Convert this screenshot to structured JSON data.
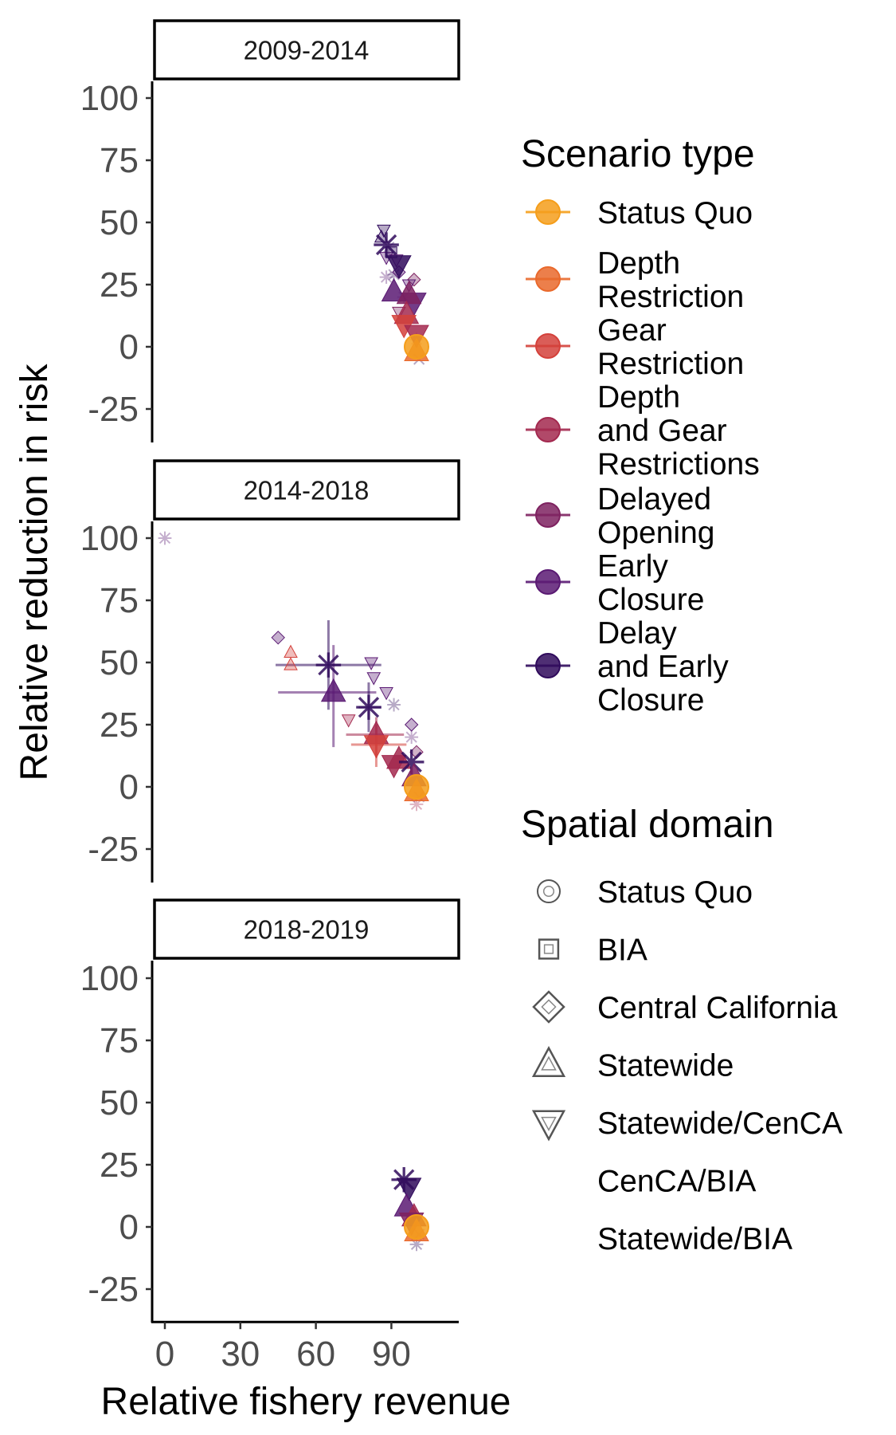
{
  "chart_data": {
    "type": "scatter",
    "xlabel": "Relative fishery revenue",
    "ylabel": "Relative reduction in risk",
    "xlim": [
      -5,
      117
    ],
    "ylim": [
      -35,
      108
    ],
    "xticks": [
      0,
      30,
      60,
      90
    ],
    "yticks": [
      100,
      75,
      50,
      25,
      0,
      -25
    ],
    "facets": [
      "2009-2014",
      "2014-2018",
      "2018-2019"
    ],
    "legend_scenario": {
      "title": "Scenario type",
      "items": [
        {
          "label": [
            "Status Quo"
          ],
          "color": "#f59e1b"
        },
        {
          "label": [
            "Depth",
            "Restriction"
          ],
          "color": "#e9692c"
        },
        {
          "label": [
            "Gear",
            "Restriction"
          ],
          "color": "#d4413b"
        },
        {
          "label": [
            "Depth",
            "and Gear",
            "Restrictions"
          ],
          "color": "#a3294f"
        },
        {
          "label": [
            "Delayed",
            "Opening"
          ],
          "color": "#7e2260"
        },
        {
          "label": [
            "Early",
            "Closure"
          ],
          "color": "#5a1a73"
        },
        {
          "label": [
            "Delay",
            "and Early",
            "Closure"
          ],
          "color": "#300b5c"
        }
      ]
    },
    "legend_spatial": {
      "title": "Spatial domain",
      "items": [
        {
          "label": "Status Quo",
          "shape": "circle"
        },
        {
          "label": "BIA",
          "shape": "square"
        },
        {
          "label": "Central California",
          "shape": "diamond"
        },
        {
          "label": "Statewide",
          "shape": "triangle-up"
        },
        {
          "label": "Statewide/CenCA",
          "shape": "triangle-down"
        },
        {
          "label": "CenCA/BIA",
          "shape": "x"
        },
        {
          "label": "Statewide/BIA",
          "shape": "asterisk"
        }
      ]
    },
    "panels": [
      {
        "facet": "2009-2014",
        "points": [
          {
            "x": 87,
            "y": 47,
            "c": 6,
            "s": "triangle-down",
            "big": false
          },
          {
            "x": 86,
            "y": 44,
            "c": 6,
            "s": "triangle-up",
            "big": false
          },
          {
            "x": 89,
            "y": 40,
            "c": 6,
            "s": "asterisk",
            "big": false
          },
          {
            "x": 88,
            "y": 36,
            "c": 5,
            "s": "triangle-down",
            "big": false
          },
          {
            "x": 90,
            "y": 38,
            "c": 6,
            "s": "square",
            "big": false
          },
          {
            "x": 92,
            "y": 35,
            "c": 5,
            "s": "triangle-down",
            "big": false
          },
          {
            "x": 88,
            "y": 28,
            "c": 5,
            "s": "asterisk",
            "big": false
          },
          {
            "x": 91,
            "y": 29,
            "c": 6,
            "s": "asterisk",
            "big": false
          },
          {
            "x": 93,
            "y": 30,
            "c": 5,
            "s": "diamond",
            "big": false
          },
          {
            "x": 99,
            "y": 27,
            "c": 4,
            "s": "diamond",
            "big": false
          },
          {
            "x": 95,
            "y": 20,
            "c": 5,
            "s": "asterisk",
            "big": false
          },
          {
            "x": 97,
            "y": 25,
            "c": 5,
            "s": "triangle-down",
            "big": false
          },
          {
            "x": 93,
            "y": 14,
            "c": 4,
            "s": "triangle-down",
            "big": false
          },
          {
            "x": 100,
            "y": 3,
            "c": 1,
            "s": "asterisk",
            "big": false
          },
          {
            "x": 101,
            "y": -5,
            "c": 6,
            "s": "x",
            "big": false
          },
          {
            "x": 88,
            "y": 41,
            "c": 6,
            "s": "asterisk",
            "big": true
          },
          {
            "x": 93,
            "y": 33,
            "c": 6,
            "s": "triangle-down",
            "big": true
          },
          {
            "x": 91,
            "y": 22,
            "c": 5,
            "s": "triangle-up",
            "big": true
          },
          {
            "x": 99,
            "y": 18,
            "c": 5,
            "s": "triangle-down",
            "big": true
          },
          {
            "x": 97,
            "y": 21,
            "c": 4,
            "s": "triangle-up",
            "big": true
          },
          {
            "x": 96,
            "y": 13,
            "c": 3,
            "s": "triangle-up",
            "big": true
          },
          {
            "x": 95,
            "y": 9,
            "c": 2,
            "s": "triangle-down",
            "big": true
          },
          {
            "x": 100,
            "y": 5,
            "c": 3,
            "s": "triangle-down",
            "big": true
          },
          {
            "x": 100,
            "y": -2,
            "c": 1,
            "s": "triangle-up",
            "big": true
          },
          {
            "x": 100,
            "y": 0,
            "c": 0,
            "s": "circle",
            "big": true
          }
        ]
      },
      {
        "facet": "2014-2018",
        "points": [
          {
            "x": 0,
            "y": 100,
            "c": 5,
            "s": "asterisk",
            "big": false
          },
          {
            "x": 45,
            "y": 60,
            "c": 5,
            "s": "diamond",
            "big": false
          },
          {
            "x": 50,
            "y": 54,
            "c": 2,
            "s": "triangle-up",
            "big": false
          },
          {
            "x": 50,
            "y": 49,
            "c": 2,
            "s": "triangle-up",
            "big": false
          },
          {
            "x": 82,
            "y": 50,
            "c": 5,
            "s": "triangle-down",
            "big": false
          },
          {
            "x": 83,
            "y": 44,
            "c": 5,
            "s": "triangle-down",
            "big": false
          },
          {
            "x": 88,
            "y": 38,
            "c": 5,
            "s": "triangle-down",
            "big": false
          },
          {
            "x": 91,
            "y": 33,
            "c": 6,
            "s": "asterisk",
            "big": false
          },
          {
            "x": 73,
            "y": 27,
            "c": 3,
            "s": "triangle-down",
            "big": false
          },
          {
            "x": 98,
            "y": 25,
            "c": 5,
            "s": "diamond",
            "big": false
          },
          {
            "x": 98,
            "y": 20,
            "c": 5,
            "s": "asterisk",
            "big": false
          },
          {
            "x": 100,
            "y": 14,
            "c": 4,
            "s": "diamond",
            "big": false
          },
          {
            "x": 100,
            "y": -7,
            "c": 3,
            "s": "asterisk",
            "big": false
          },
          {
            "x": 101,
            "y": -4,
            "c": 5,
            "s": "x",
            "big": false
          },
          {
            "x": 65,
            "y": 49,
            "c": 6,
            "s": "asterisk",
            "big": true,
            "ex": [
              44,
              86
            ],
            "ey": [
              31,
              67
            ]
          },
          {
            "x": 67,
            "y": 38,
            "c": 5,
            "s": "triangle-up",
            "big": true,
            "ex": [
              45,
              84
            ],
            "ey": [
              16,
              57
            ]
          },
          {
            "x": 81,
            "y": 32,
            "c": 6,
            "s": "asterisk",
            "big": true,
            "ex": [
              77,
              86
            ],
            "ey": [
              22,
              42
            ]
          },
          {
            "x": 84,
            "y": 21,
            "c": 3,
            "s": "triangle-up",
            "big": true,
            "ex": [
              72,
              95
            ],
            "ey": [
              12,
              28
            ]
          },
          {
            "x": 84,
            "y": 17,
            "c": 2,
            "s": "triangle-down",
            "big": true,
            "ex": [
              74,
              96
            ],
            "ey": [
              8,
              25
            ]
          },
          {
            "x": 93,
            "y": 11,
            "c": 3,
            "s": "triangle-up",
            "big": true
          },
          {
            "x": 91,
            "y": 9,
            "c": 3,
            "s": "triangle-down",
            "big": true
          },
          {
            "x": 98,
            "y": 10,
            "c": 6,
            "s": "asterisk",
            "big": true
          },
          {
            "x": 99,
            "y": 4,
            "c": 4,
            "s": "triangle-up",
            "big": true
          },
          {
            "x": 100,
            "y": -2,
            "c": 1,
            "s": "triangle-up",
            "big": true
          },
          {
            "x": 100,
            "y": 0,
            "c": 0,
            "s": "circle",
            "big": true
          }
        ]
      },
      {
        "facet": "2018-2019",
        "points": [
          {
            "x": 95,
            "y": 19,
            "c": 6,
            "s": "asterisk",
            "big": true
          },
          {
            "x": 97,
            "y": 16,
            "c": 6,
            "s": "triangle-down",
            "big": true
          },
          {
            "x": 96,
            "y": 8,
            "c": 5,
            "s": "triangle-up",
            "big": true
          },
          {
            "x": 99,
            "y": 4,
            "c": 3,
            "s": "triangle-up",
            "big": true
          },
          {
            "x": 98,
            "y": 2,
            "c": 4,
            "s": "triangle-down",
            "big": true
          },
          {
            "x": 100,
            "y": -2,
            "c": 1,
            "s": "triangle-up",
            "big": true
          },
          {
            "x": 100,
            "y": -7,
            "c": 6,
            "s": "asterisk",
            "big": false
          },
          {
            "x": 101,
            "y": -3,
            "c": 6,
            "s": "x",
            "big": false
          },
          {
            "x": 100,
            "y": 0,
            "c": 0,
            "s": "circle",
            "big": true
          }
        ]
      }
    ]
  }
}
